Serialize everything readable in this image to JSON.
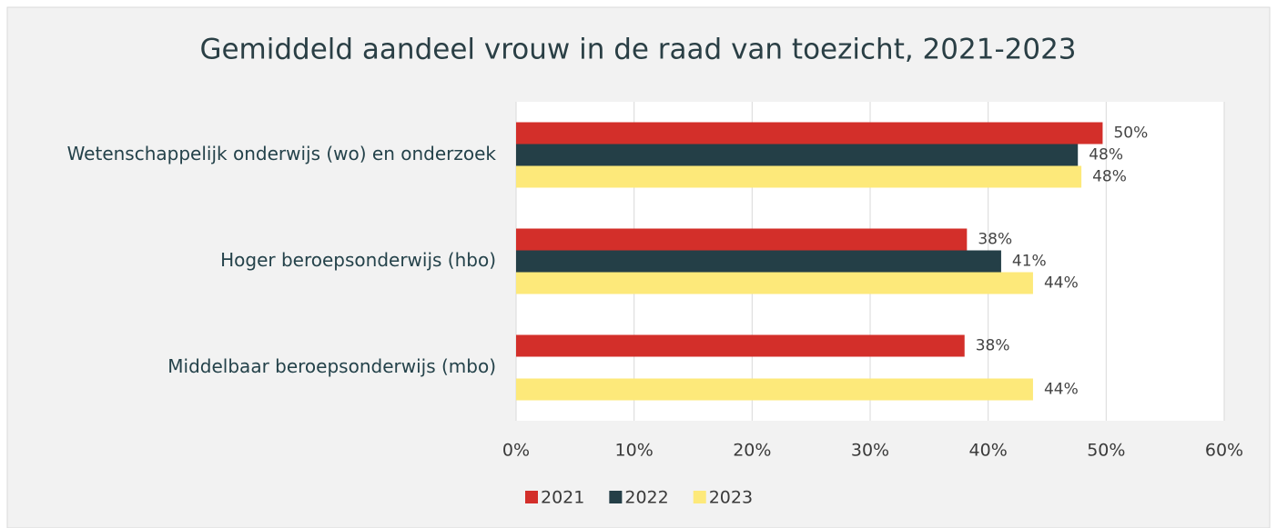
{
  "chart_data": {
    "type": "hbar",
    "title": "Gemiddeld aandeel vrouw in de raad van toezicht, 2021-2023",
    "categories": [
      "Wetenschappelijk onderwijs (wo) en onderzoek",
      "Hoger beroepsonderwijs (hbo)",
      "Middelbaar beroepsonderwijs (mbo)"
    ],
    "series": [
      {
        "name": "2021",
        "color": "#d32f2a",
        "values": [
          49.7,
          38.2,
          38.0
        ],
        "value_labels": [
          "50%",
          "38%",
          "38%"
        ]
      },
      {
        "name": "2022",
        "color": "#243f47",
        "values": [
          47.6,
          41.1,
          null
        ],
        "value_labels": [
          "48%",
          "41%",
          null
        ]
      },
      {
        "name": "2023",
        "color": "#fde97a",
        "values": [
          47.9,
          43.8,
          43.8
        ],
        "value_labels": [
          "48%",
          "44%",
          "44%"
        ]
      }
    ],
    "xlim": [
      0,
      60
    ],
    "xticks": [
      {
        "value": 0,
        "label": "0%"
      },
      {
        "value": 10,
        "label": "10%"
      },
      {
        "value": 20,
        "label": "20%"
      },
      {
        "value": 30,
        "label": "30%"
      },
      {
        "value": 40,
        "label": "40%"
      },
      {
        "value": 50,
        "label": "50%"
      },
      {
        "value": 60,
        "label": "60%"
      }
    ],
    "grid": true,
    "legend": "bottom"
  }
}
